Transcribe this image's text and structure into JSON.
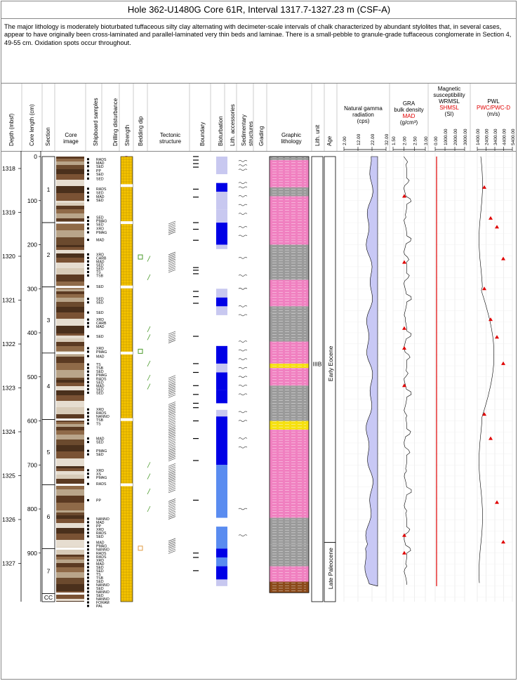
{
  "title": "Hole 362-U1480G Core 61R, Interval 1317.7-1327.23 m (CSF-A)",
  "description": "The major lithology is moderately bioturbated tuffaceous silty clay alternating with decimeter-scale intervals of chalk characterized by abundant stylolites that, in several cases, appear to have originally been cross-laminated and parallel-laminated very thin beds and laminae. There is a small-pebble to granule-grade tuffaceous conglomerate in Section 4, 49-55 cm. Oxidation spots occur throughout.",
  "columns": {
    "depth": "Depth (mbsf)",
    "core_length": "Core length (cm)",
    "section": "Section",
    "core_image_1": "Core",
    "core_image_2": "image",
    "samples": "Shipboard samples",
    "drilling": "Drilling disturbance",
    "strength": "Strength",
    "bedding": "Bedding dip",
    "tectonic_1": "Tectonic",
    "tectonic_2": "structure",
    "boundary": "Boundary",
    "bioturbation": "Bioturbation",
    "lith_acc": "Lith. accessories",
    "sed_struct_1": "Sedimentary",
    "sed_struct_2": "structures",
    "grading": "Grading",
    "graphic_1": "Graphic",
    "graphic_2": "lithology",
    "lith_unit": "Lith. unit",
    "age": "Age"
  },
  "logs": {
    "ngr": {
      "l1": "Natural gamma",
      "l2": "radiation",
      "l3": "(cps)",
      "ticks": [
        "2.00",
        "12.00",
        "22.00",
        "32.00"
      ]
    },
    "gra": {
      "l1": "GRA",
      "l2": "bulk density",
      "l3": "MAD",
      "l4": "(g/cm³)",
      "ticks": [
        "1.50",
        "2.00",
        "2.50",
        "3.00"
      ]
    },
    "ms": {
      "l1": "Magnetic",
      "l2": "susceptibility",
      "l3": "WRMSL",
      "l4": "SHMSL",
      "l5": "(SI)",
      "ticks": [
        "0.00",
        "1000.00",
        "2000.00",
        "3000.00"
      ]
    },
    "pwl": {
      "l1": "PWL",
      "l2": "PWC/PWC-D",
      "l3": "(m/s)",
      "ticks": [
        "1400.00",
        "2400.00",
        "3400.00",
        "4400.00",
        "5400.00"
      ]
    }
  },
  "depth_ticks": [
    "1318",
    "1319",
    "1320",
    "1321",
    "1322",
    "1323",
    "1324",
    "1325",
    "1326",
    "1327"
  ],
  "cm_ticks": [
    "0",
    "100",
    "200",
    "300",
    "400",
    "500",
    "600",
    "700",
    "800",
    "900"
  ],
  "sections": [
    "1",
    "2",
    "3",
    "4",
    "5",
    "6",
    "7",
    "CC"
  ],
  "lith_unit": "IIIB",
  "ages": [
    "Early Eocene",
    "Late Paleocene"
  ],
  "samples": [
    {
      "cm": 6,
      "t": "RADS"
    },
    {
      "cm": 14,
      "t": "MAD"
    },
    {
      "cm": 22,
      "t": "SED"
    },
    {
      "cm": 32,
      "t": "PP"
    },
    {
      "cm": 40,
      "t": "SED"
    },
    {
      "cm": 50,
      "t": "SED"
    },
    {
      "cm": 73,
      "t": "RADS"
    },
    {
      "cm": 82,
      "t": "SED"
    },
    {
      "cm": 91,
      "t": "MAD"
    },
    {
      "cm": 99,
      "t": "SED"
    },
    {
      "cm": 138,
      "t": "SED"
    },
    {
      "cm": 146,
      "t": "PMAG"
    },
    {
      "cm": 154,
      "t": "SED"
    },
    {
      "cm": 163,
      "t": "XRD"
    },
    {
      "cm": 172,
      "t": "PMAG"
    },
    {
      "cm": 189,
      "t": "MAD"
    },
    {
      "cm": 222,
      "t": "XRD"
    },
    {
      "cm": 230,
      "t": "CARB"
    },
    {
      "cm": 238,
      "t": "MAD"
    },
    {
      "cm": 246,
      "t": "SED"
    },
    {
      "cm": 254,
      "t": "SED"
    },
    {
      "cm": 262,
      "t": "TS"
    },
    {
      "cm": 270,
      "t": "TSB"
    },
    {
      "cm": 295,
      "t": "SED"
    },
    {
      "cm": 323,
      "t": "SED"
    },
    {
      "cm": 331,
      "t": "SED"
    },
    {
      "cm": 354,
      "t": "SED"
    },
    {
      "cm": 370,
      "t": "XRD"
    },
    {
      "cm": 378,
      "t": "CARB"
    },
    {
      "cm": 386,
      "t": "MAD"
    },
    {
      "cm": 408,
      "t": "SED"
    },
    {
      "cm": 435,
      "t": "XRD"
    },
    {
      "cm": 443,
      "t": "PMAG"
    },
    {
      "cm": 453,
      "t": "MAD"
    },
    {
      "cm": 472,
      "t": "TS"
    },
    {
      "cm": 480,
      "t": "TSB"
    },
    {
      "cm": 488,
      "t": "SED"
    },
    {
      "cm": 496,
      "t": "PMAG"
    },
    {
      "cm": 504,
      "t": "RADS"
    },
    {
      "cm": 512,
      "t": "SED"
    },
    {
      "cm": 520,
      "t": "MAD"
    },
    {
      "cm": 528,
      "t": "SED"
    },
    {
      "cm": 536,
      "t": "SED"
    },
    {
      "cm": 574,
      "t": "XRD"
    },
    {
      "cm": 582,
      "t": "RADS"
    },
    {
      "cm": 590,
      "t": "NANNO"
    },
    {
      "cm": 598,
      "t": "TSB"
    },
    {
      "cm": 606,
      "t": "TS"
    },
    {
      "cm": 640,
      "t": "MAD"
    },
    {
      "cm": 648,
      "t": "SED"
    },
    {
      "cm": 668,
      "t": "PMAG"
    },
    {
      "cm": 676,
      "t": "SED"
    },
    {
      "cm": 712,
      "t": "XRD"
    },
    {
      "cm": 720,
      "t": "XS"
    },
    {
      "cm": 728,
      "t": "PMAG"
    },
    {
      "cm": 743,
      "t": "RADS"
    },
    {
      "cm": 780,
      "t": "PP"
    },
    {
      "cm": 822,
      "t": "NANNO"
    },
    {
      "cm": 830,
      "t": "MAD"
    },
    {
      "cm": 838,
      "t": "PP"
    },
    {
      "cm": 846,
      "t": "XRD"
    },
    {
      "cm": 854,
      "t": "RADS"
    },
    {
      "cm": 862,
      "t": "SED"
    },
    {
      "cm": 876,
      "t": "MAD"
    },
    {
      "cm": 884,
      "t": "PMAG"
    },
    {
      "cm": 892,
      "t": "NANNO"
    },
    {
      "cm": 900,
      "t": "RADS"
    },
    {
      "cm": 908,
      "t": "RADS"
    },
    {
      "cm": 916,
      "t": "XRD"
    },
    {
      "cm": 924,
      "t": "MAD"
    },
    {
      "cm": 932,
      "t": "SED"
    },
    {
      "cm": 940,
      "t": "SED"
    },
    {
      "cm": 948,
      "t": "TS"
    },
    {
      "cm": 956,
      "t": "TSB"
    },
    {
      "cm": 964,
      "t": "SED"
    },
    {
      "cm": 972,
      "t": "NANNO"
    },
    {
      "cm": 980,
      "t": "SED"
    },
    {
      "cm": 988,
      "t": "NANNO"
    },
    {
      "cm": 996,
      "t": "SED"
    },
    {
      "cm": 1004,
      "t": "NANNO"
    },
    {
      "cm": 1012,
      "t": "FORAM"
    },
    {
      "cm": 1020,
      "t": "PAL"
    }
  ],
  "colors": {
    "core_dark": "#5b3a22",
    "core_light": "#d8cbb8",
    "strength": "#f5c400",
    "bioturbation_heavy": "#0000e6",
    "bioturbation_med": "#5a8cf0",
    "bioturbation_light": "#c8c8f0",
    "graphic_pink": "#f080c0",
    "graphic_gray": "#9a9a9a",
    "ngr_fill": "#c8c8f5",
    "mad_red": "#e00000",
    "ms_red": "#e00000"
  }
}
